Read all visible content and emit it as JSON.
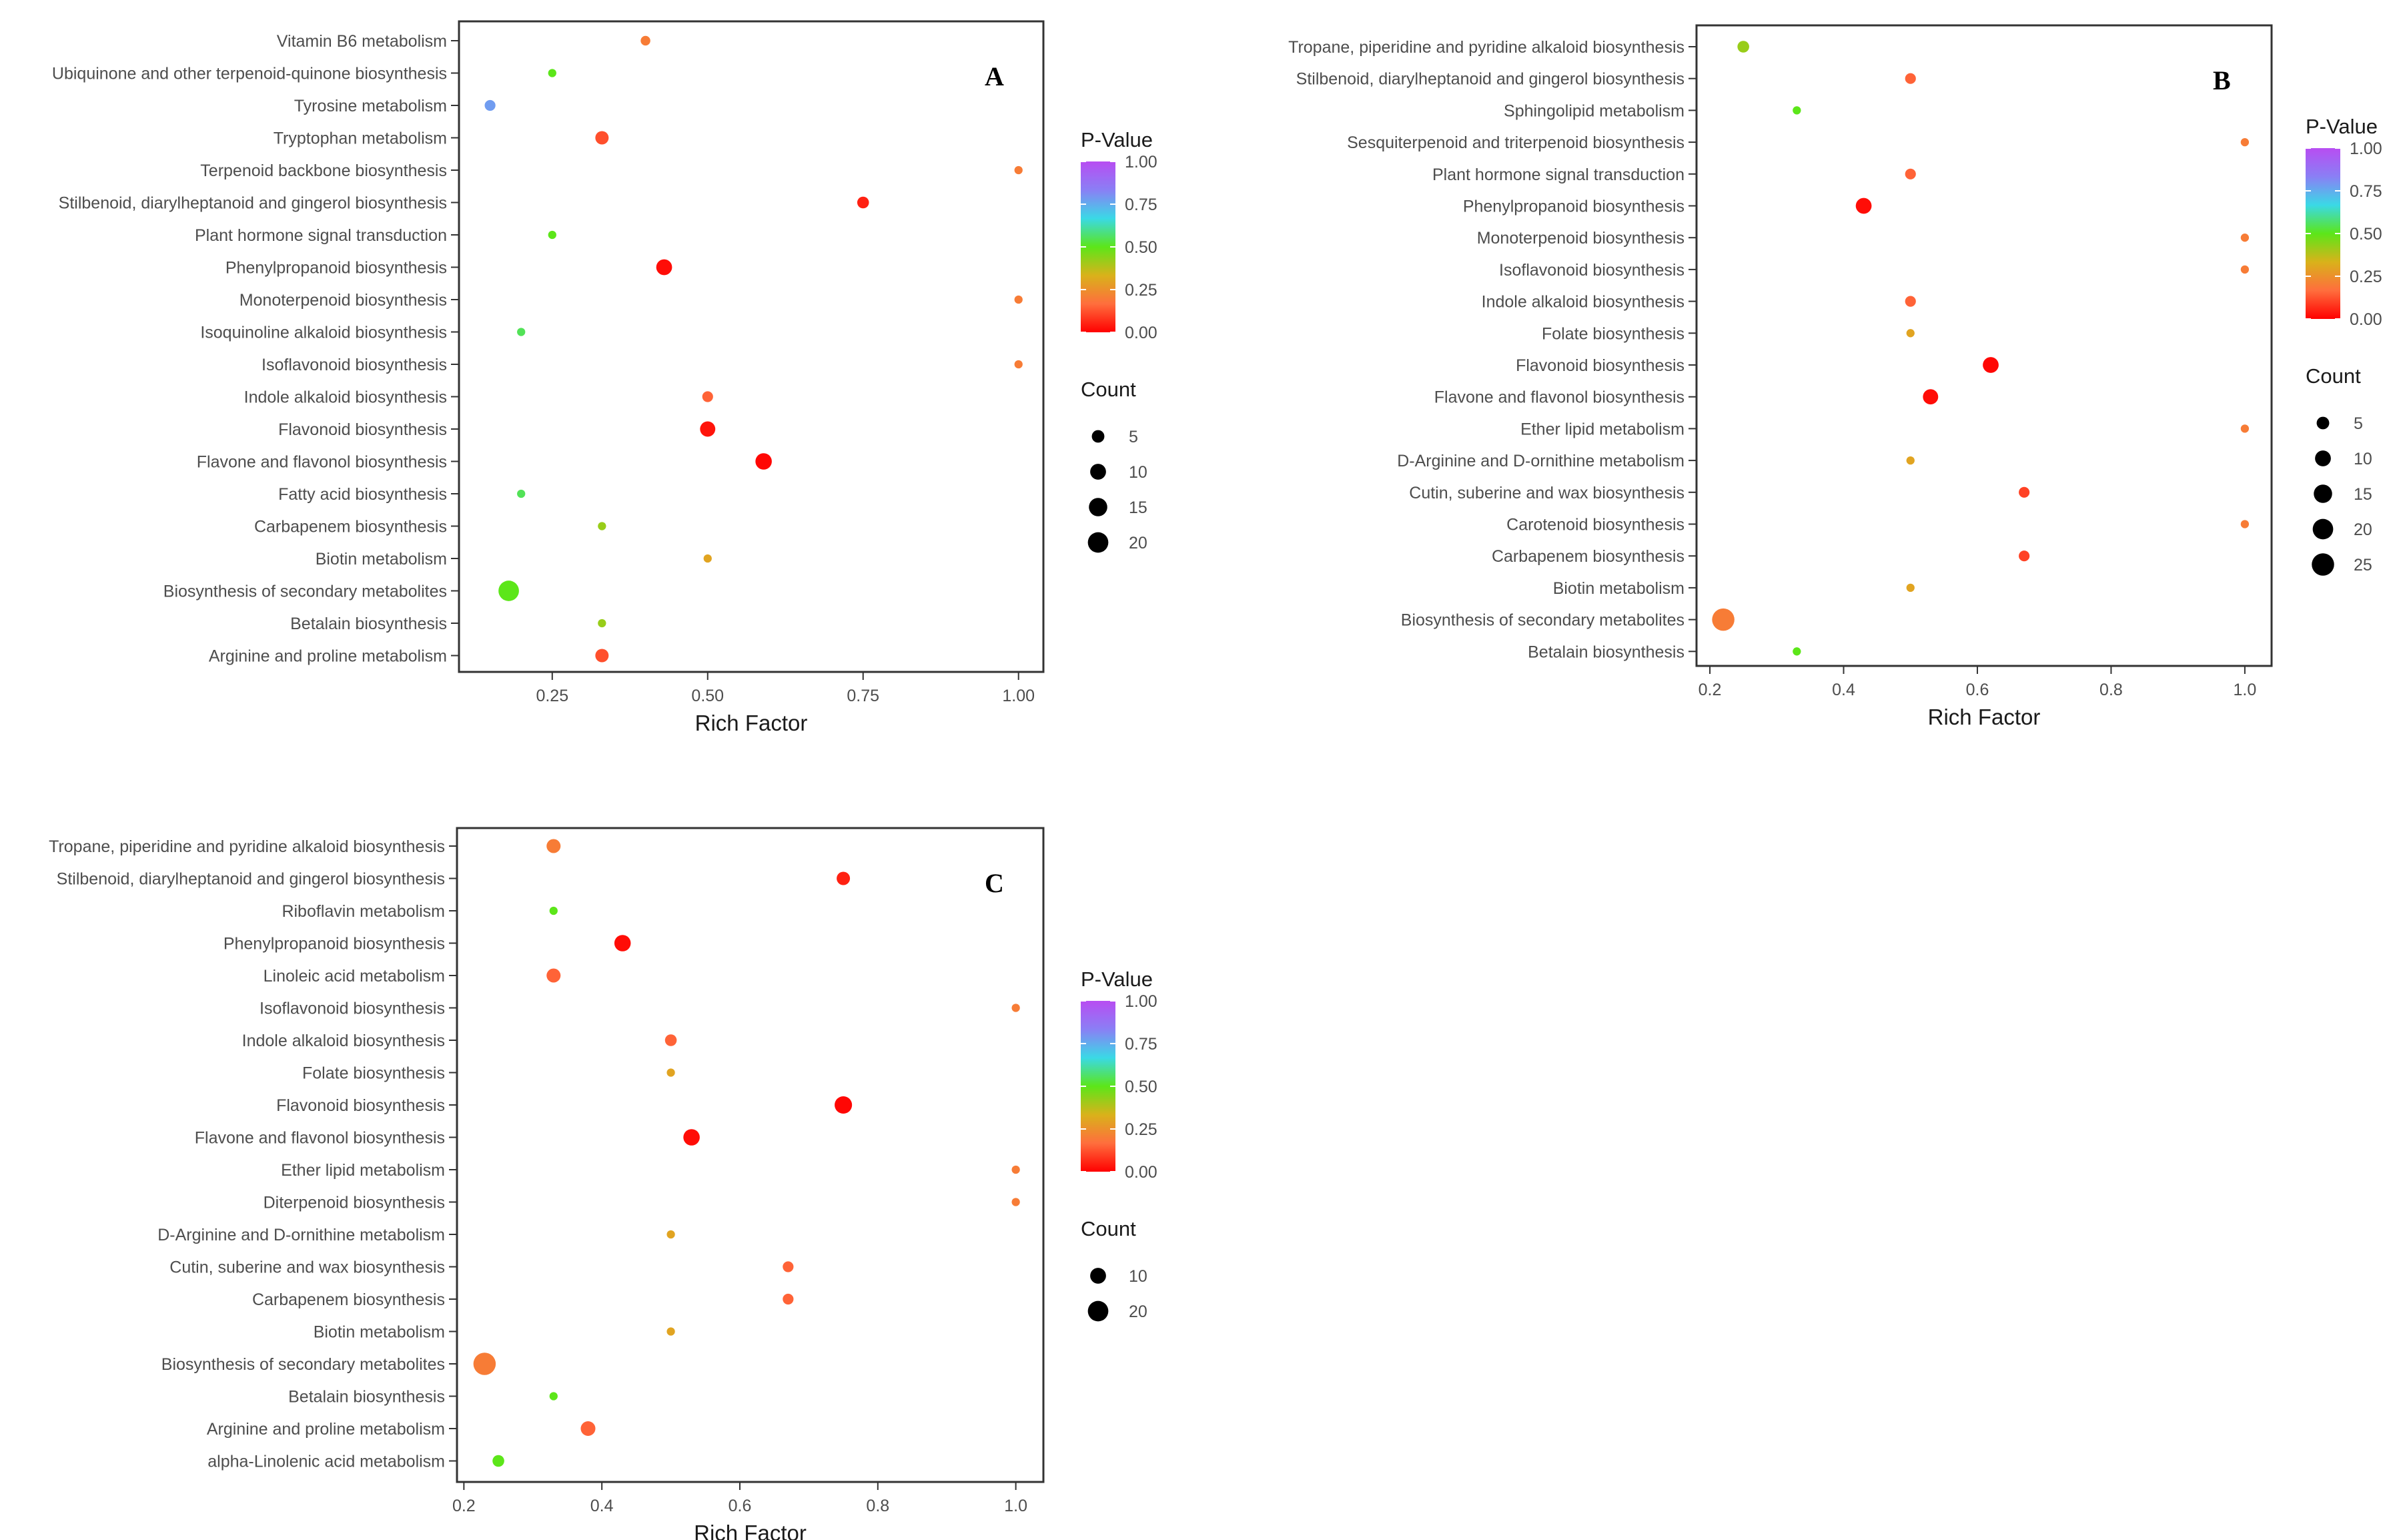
{
  "colors": {
    "scale_stops": [
      "#ff0000",
      "#ff6e3d",
      "#d9b21a",
      "#5ce619",
      "#3ad9e6",
      "#8a7ff5",
      "#b84df2"
    ],
    "marker_stroke": "#000000",
    "panel_border": "#333333"
  },
  "chart_data": [
    {
      "type": "scatter",
      "panel_label": "A",
      "xlabel": "Rich Factor",
      "ylabel": "",
      "xlim": [
        0.1,
        1.04
      ],
      "x_ticks": [
        "0.25",
        "0.50",
        "0.75",
        "1.00"
      ],
      "x_tick_values": [
        0.25,
        0.5,
        0.75,
        1.0
      ],
      "grid": false,
      "legend_position": "right",
      "color_legend": {
        "title": "P-Value",
        "range": [
          0,
          1
        ],
        "labels": [
          "1.00",
          "0.75",
          "0.50",
          "0.25",
          "0.00"
        ]
      },
      "size_legend": {
        "title": "Count",
        "values": [
          5,
          10,
          15,
          20
        ]
      },
      "points": [
        {
          "pathway": "Vitamin B6 metabolism",
          "rich_factor": 0.4,
          "p_value": 0.2,
          "count": 2
        },
        {
          "pathway": "Ubiquinone and other terpenoid-quinone biosynthesis",
          "rich_factor": 0.25,
          "p_value": 0.5,
          "count": 1
        },
        {
          "pathway": "Tyrosine metabolism",
          "rich_factor": 0.15,
          "p_value": 0.78,
          "count": 3
        },
        {
          "pathway": "Tryptophan metabolism",
          "rich_factor": 0.33,
          "p_value": 0.12,
          "count": 6
        },
        {
          "pathway": "Terpenoid backbone biosynthesis",
          "rich_factor": 1.0,
          "p_value": 0.2,
          "count": 1
        },
        {
          "pathway": "Stilbenoid, diarylheptanoid and gingerol biosynthesis",
          "rich_factor": 0.75,
          "p_value": 0.05,
          "count": 4
        },
        {
          "pathway": "Plant hormone signal transduction",
          "rich_factor": 0.25,
          "p_value": 0.5,
          "count": 1
        },
        {
          "pathway": "Phenylpropanoid biosynthesis",
          "rich_factor": 0.43,
          "p_value": 0.02,
          "count": 10
        },
        {
          "pathway": "Monoterpenoid biosynthesis",
          "rich_factor": 1.0,
          "p_value": 0.2,
          "count": 1
        },
        {
          "pathway": "Isoquinoline alkaloid biosynthesis",
          "rich_factor": 0.2,
          "p_value": 0.55,
          "count": 1
        },
        {
          "pathway": "Isoflavonoid biosynthesis",
          "rich_factor": 1.0,
          "p_value": 0.2,
          "count": 1
        },
        {
          "pathway": "Indole alkaloid biosynthesis",
          "rich_factor": 0.5,
          "p_value": 0.15,
          "count": 3
        },
        {
          "pathway": "Flavonoid biosynthesis",
          "rich_factor": 0.5,
          "p_value": 0.03,
          "count": 9
        },
        {
          "pathway": "Flavone and flavonol biosynthesis",
          "rich_factor": 0.59,
          "p_value": 0.01,
          "count": 11
        },
        {
          "pathway": "Fatty acid biosynthesis",
          "rich_factor": 0.2,
          "p_value": 0.55,
          "count": 1
        },
        {
          "pathway": "Carbapenem biosynthesis",
          "rich_factor": 0.33,
          "p_value": 0.42,
          "count": 1
        },
        {
          "pathway": "Biotin metabolism",
          "rich_factor": 0.5,
          "p_value": 0.3,
          "count": 1
        },
        {
          "pathway": "Biosynthesis of secondary metabolites",
          "rich_factor": 0.18,
          "p_value": 0.5,
          "count": 20
        },
        {
          "pathway": "Betalain biosynthesis",
          "rich_factor": 0.33,
          "p_value": 0.42,
          "count": 1
        },
        {
          "pathway": "Arginine and proline metabolism",
          "rich_factor": 0.33,
          "p_value": 0.12,
          "count": 6
        }
      ]
    },
    {
      "type": "scatter",
      "panel_label": "B",
      "xlabel": "Rich Factor",
      "ylabel": "",
      "xlim": [
        0.18,
        1.04
      ],
      "x_ticks": [
        "0.2",
        "0.4",
        "0.6",
        "0.8",
        "1.0"
      ],
      "x_tick_values": [
        0.2,
        0.4,
        0.6,
        0.8,
        1.0
      ],
      "grid": false,
      "legend_position": "right",
      "color_legend": {
        "title": "P-Value",
        "range": [
          0,
          1
        ],
        "labels": [
          "1.00",
          "0.75",
          "0.50",
          "0.25",
          "0.00"
        ]
      },
      "size_legend": {
        "title": "Count",
        "values": [
          5,
          10,
          15,
          20,
          25
        ]
      },
      "points": [
        {
          "pathway": "Tropane, piperidine and pyridine alkaloid biosynthesis",
          "rich_factor": 0.25,
          "p_value": 0.42,
          "count": 4
        },
        {
          "pathway": "Stilbenoid, diarylheptanoid and gingerol biosynthesis",
          "rich_factor": 0.5,
          "p_value": 0.15,
          "count": 3
        },
        {
          "pathway": "Sphingolipid metabolism",
          "rich_factor": 0.33,
          "p_value": 0.5,
          "count": 1
        },
        {
          "pathway": "Sesquiterpenoid and triterpenoid biosynthesis",
          "rich_factor": 1.0,
          "p_value": 0.2,
          "count": 1
        },
        {
          "pathway": "Plant hormone signal transduction",
          "rich_factor": 0.5,
          "p_value": 0.15,
          "count": 3
        },
        {
          "pathway": "Phenylpropanoid biosynthesis",
          "rich_factor": 0.43,
          "p_value": 0.02,
          "count": 10
        },
        {
          "pathway": "Monoterpenoid biosynthesis",
          "rich_factor": 1.0,
          "p_value": 0.2,
          "count": 1
        },
        {
          "pathway": "Isoflavonoid biosynthesis",
          "rich_factor": 1.0,
          "p_value": 0.2,
          "count": 1
        },
        {
          "pathway": "Indole alkaloid biosynthesis",
          "rich_factor": 0.5,
          "p_value": 0.15,
          "count": 3
        },
        {
          "pathway": "Folate biosynthesis",
          "rich_factor": 0.5,
          "p_value": 0.3,
          "count": 1
        },
        {
          "pathway": "Flavonoid biosynthesis",
          "rich_factor": 0.62,
          "p_value": 0.01,
          "count": 10
        },
        {
          "pathway": "Flavone and flavonol biosynthesis",
          "rich_factor": 0.53,
          "p_value": 0.02,
          "count": 9
        },
        {
          "pathway": "Ether lipid metabolism",
          "rich_factor": 1.0,
          "p_value": 0.2,
          "count": 1
        },
        {
          "pathway": "D-Arginine and D-ornithine metabolism",
          "rich_factor": 0.5,
          "p_value": 0.3,
          "count": 1
        },
        {
          "pathway": "Cutin, suberine and wax biosynthesis",
          "rich_factor": 0.67,
          "p_value": 0.1,
          "count": 3
        },
        {
          "pathway": "Carotenoid biosynthesis",
          "rich_factor": 1.0,
          "p_value": 0.2,
          "count": 1
        },
        {
          "pathway": "Carbapenem biosynthesis",
          "rich_factor": 0.67,
          "p_value": 0.1,
          "count": 3
        },
        {
          "pathway": "Biotin metabolism",
          "rich_factor": 0.5,
          "p_value": 0.3,
          "count": 1
        },
        {
          "pathway": "Biosynthesis of secondary metabolites",
          "rich_factor": 0.22,
          "p_value": 0.2,
          "count": 25
        },
        {
          "pathway": "Betalain biosynthesis",
          "rich_factor": 0.33,
          "p_value": 0.5,
          "count": 1
        }
      ]
    },
    {
      "type": "scatter",
      "panel_label": "C",
      "xlabel": "Rich Factor",
      "ylabel": "",
      "xlim": [
        0.19,
        1.04
      ],
      "x_ticks": [
        "0.2",
        "0.4",
        "0.6",
        "0.8",
        "1.0"
      ],
      "x_tick_values": [
        0.2,
        0.4,
        0.6,
        0.8,
        1.0
      ],
      "grid": false,
      "legend_position": "right",
      "color_legend": {
        "title": "P-Value",
        "range": [
          0,
          1
        ],
        "labels": [
          "1.00",
          "0.75",
          "0.50",
          "0.25",
          "0.00"
        ]
      },
      "size_legend": {
        "title": "Count",
        "values": [
          10,
          20
        ]
      },
      "points": [
        {
          "pathway": "Tropane, piperidine and pyridine alkaloid biosynthesis",
          "rich_factor": 0.33,
          "p_value": 0.2,
          "count": 7
        },
        {
          "pathway": "Stilbenoid, diarylheptanoid and gingerol biosynthesis",
          "rich_factor": 0.75,
          "p_value": 0.05,
          "count": 6
        },
        {
          "pathway": "Riboflavin metabolism",
          "rich_factor": 0.33,
          "p_value": 0.5,
          "count": 1
        },
        {
          "pathway": "Phenylpropanoid biosynthesis",
          "rich_factor": 0.43,
          "p_value": 0.02,
          "count": 11
        },
        {
          "pathway": "Linoleic acid metabolism",
          "rich_factor": 0.33,
          "p_value": 0.15,
          "count": 7
        },
        {
          "pathway": "Isoflavonoid biosynthesis",
          "rich_factor": 1.0,
          "p_value": 0.2,
          "count": 1
        },
        {
          "pathway": "Indole alkaloid biosynthesis",
          "rich_factor": 0.5,
          "p_value": 0.15,
          "count": 4
        },
        {
          "pathway": "Folate biosynthesis",
          "rich_factor": 0.5,
          "p_value": 0.3,
          "count": 1
        },
        {
          "pathway": "Flavonoid biosynthesis",
          "rich_factor": 0.75,
          "p_value": 0.01,
          "count": 13
        },
        {
          "pathway": "Flavone and flavonol biosynthesis",
          "rich_factor": 0.53,
          "p_value": 0.02,
          "count": 11
        },
        {
          "pathway": "Ether lipid metabolism",
          "rich_factor": 1.0,
          "p_value": 0.2,
          "count": 1
        },
        {
          "pathway": "Diterpenoid biosynthesis",
          "rich_factor": 1.0,
          "p_value": 0.2,
          "count": 1
        },
        {
          "pathway": "D-Arginine and D-ornithine metabolism",
          "rich_factor": 0.5,
          "p_value": 0.3,
          "count": 1
        },
        {
          "pathway": "Cutin, suberine and wax biosynthesis",
          "rich_factor": 0.67,
          "p_value": 0.15,
          "count": 3
        },
        {
          "pathway": "Carbapenem biosynthesis",
          "rich_factor": 0.67,
          "p_value": 0.15,
          "count": 3
        },
        {
          "pathway": "Biotin metabolism",
          "rich_factor": 0.5,
          "p_value": 0.3,
          "count": 1
        },
        {
          "pathway": "Biosynthesis of secondary metabolites",
          "rich_factor": 0.23,
          "p_value": 0.2,
          "count": 25
        },
        {
          "pathway": "Betalain biosynthesis",
          "rich_factor": 0.33,
          "p_value": 0.5,
          "count": 1
        },
        {
          "pathway": "Arginine and proline metabolism",
          "rich_factor": 0.38,
          "p_value": 0.15,
          "count": 8
        },
        {
          "pathway": "alpha-Linolenic acid metabolism",
          "rich_factor": 0.25,
          "p_value": 0.5,
          "count": 4
        }
      ]
    }
  ]
}
